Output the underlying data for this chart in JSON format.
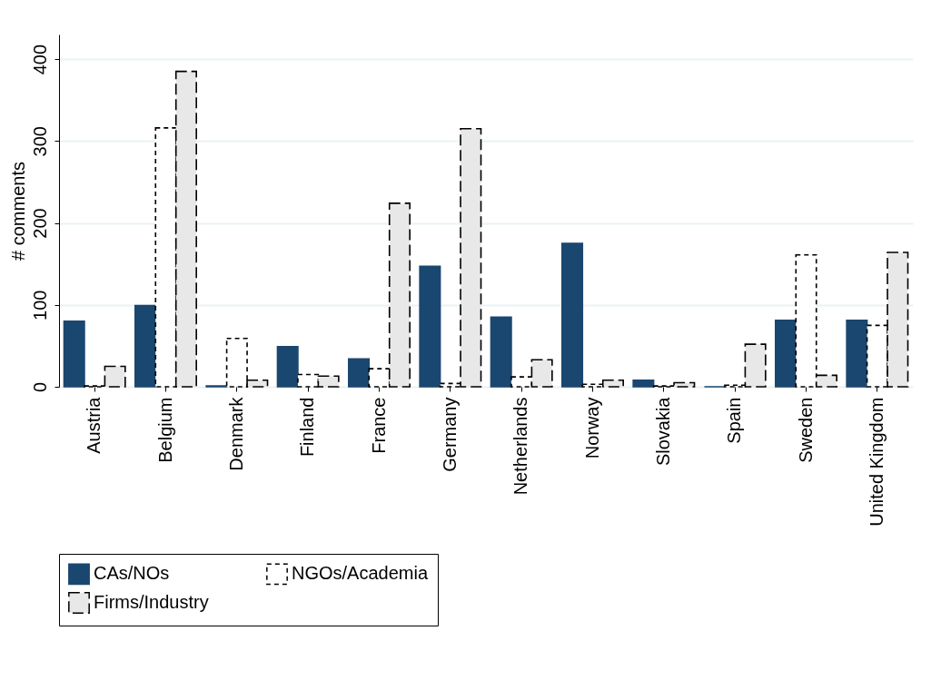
{
  "chart_data": {
    "type": "bar",
    "ylabel": "# comments",
    "categories": [
      "Austria",
      "Belgium",
      "Denmark",
      "Finland",
      "France",
      "Germany",
      "Netherlands",
      "Norway",
      "Slovakia",
      "Spain",
      "Sweden",
      "United Kingdom"
    ],
    "series": [
      {
        "name": "CAs/NOs",
        "color": "#1a476f",
        "line_style": "solid",
        "values": [
          80,
          99,
          1,
          49,
          34,
          147,
          85,
          175,
          8,
          0,
          81,
          81
        ]
      },
      {
        "name": "NGOs/Academia",
        "color": "#ffffff",
        "line_style": "dashed",
        "values": [
          1,
          316,
          59,
          15,
          22,
          4,
          12,
          3,
          1,
          2,
          161,
          75
        ]
      },
      {
        "name": "Firms/Industry",
        "color": "#e8e8e8",
        "line_style": "dashed",
        "values": [
          25,
          385,
          8,
          13,
          224,
          315,
          33,
          8,
          5,
          52,
          14,
          164
        ]
      }
    ],
    "ylim": [
      0,
      430
    ],
    "yticks": [
      0,
      100,
      200,
      300,
      400
    ],
    "grid": "y",
    "legend": "bottom"
  }
}
